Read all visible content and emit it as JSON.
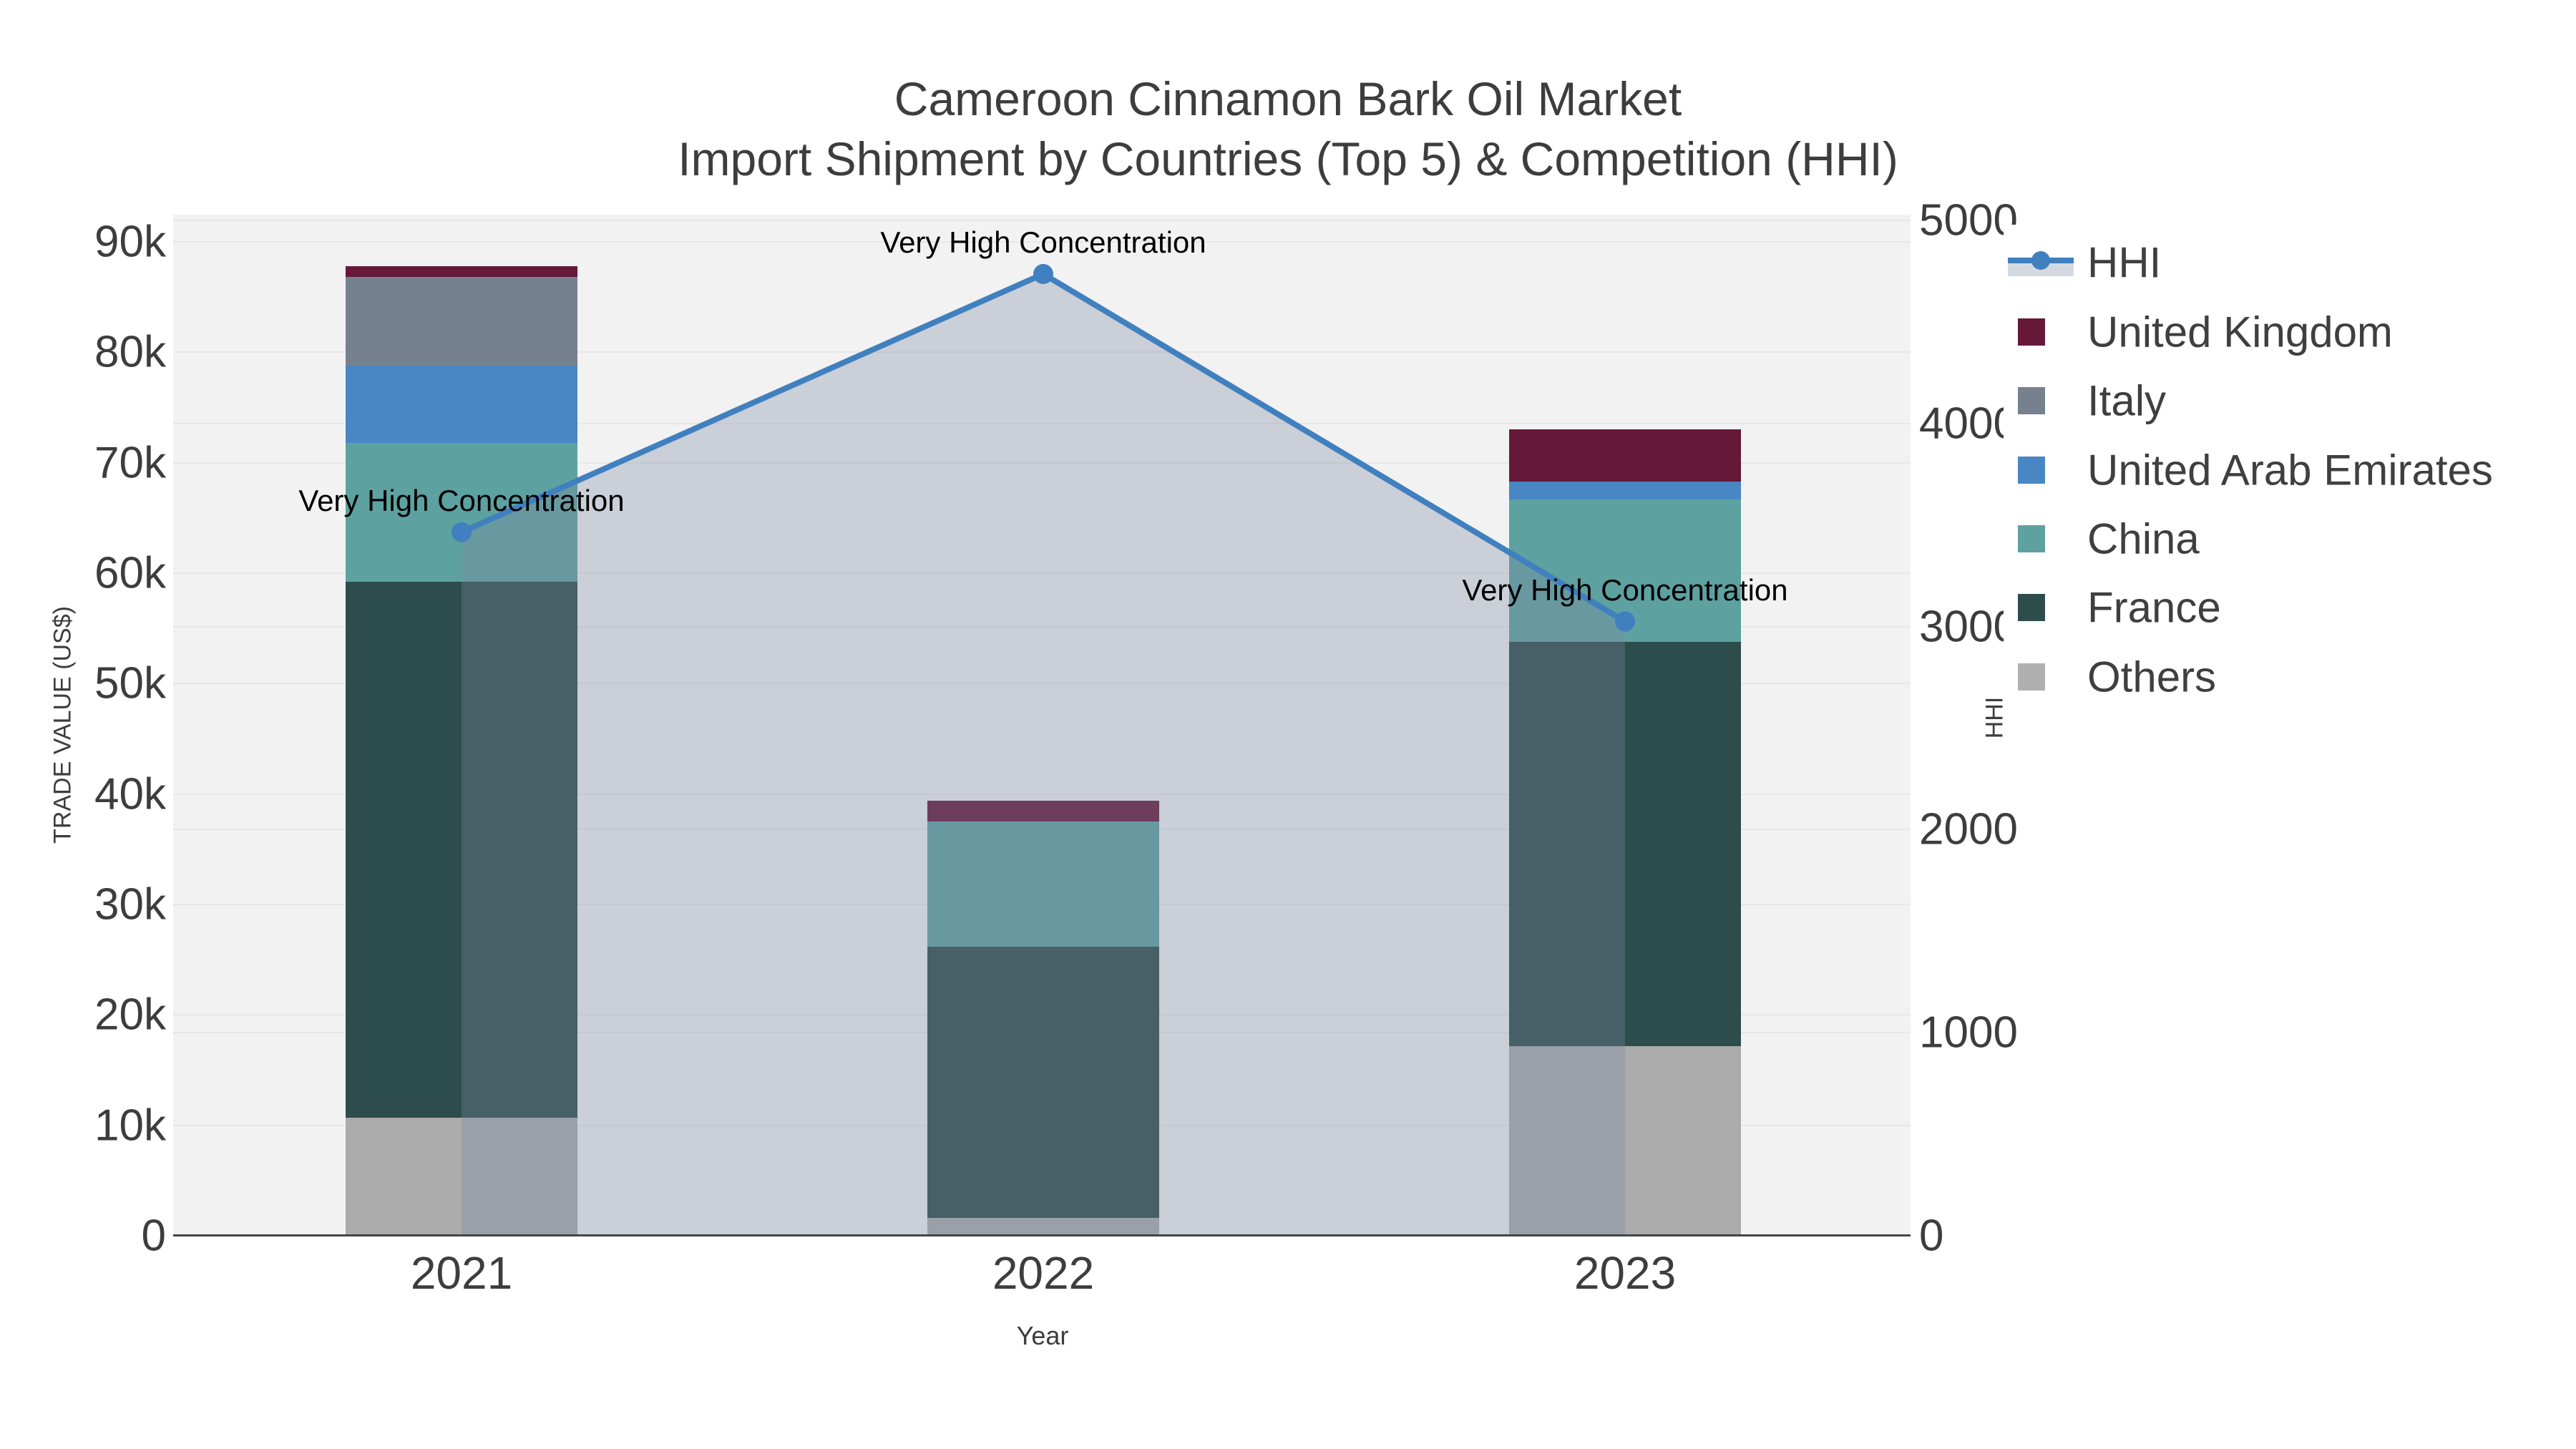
{
  "title": {
    "line1": "Cameroon Cinnamon Bark Oil Market",
    "line2": "Import Shipment by Countries (Top 5) & Competition (HHI)"
  },
  "axes": {
    "x": {
      "label": "Year",
      "categories": [
        "2021",
        "2022",
        "2023"
      ]
    },
    "y_left": {
      "label": "TRADE VALUE (US$)",
      "tick_labels": [
        "0",
        "10k",
        "20k",
        "30k",
        "40k",
        "50k",
        "60k",
        "70k",
        "80k",
        "90k"
      ],
      "max": 90000
    },
    "y_right": {
      "label": "HHI",
      "tick_labels": [
        "0",
        "1000",
        "2000",
        "3000",
        "4000",
        "5000"
      ],
      "max": 5000
    }
  },
  "legend": {
    "items": [
      {
        "label": "HHI",
        "type": "line",
        "color": "#4080bf"
      },
      {
        "label": "United Kingdom",
        "type": "square",
        "color": "#661839"
      },
      {
        "label": "Italy",
        "type": "square",
        "color": "#76818f"
      },
      {
        "label": "United Arab Emirates",
        "type": "square",
        "color": "#4886c4"
      },
      {
        "label": "China",
        "type": "square",
        "color": "#5ea1a1"
      },
      {
        "label": "France",
        "type": "square",
        "color": "#2d4c4c"
      },
      {
        "label": "Others",
        "type": "square",
        "color": "#b0b0b0"
      }
    ]
  },
  "chart_data": {
    "type": "combo-stacked-bar-line",
    "categories": [
      "2021",
      "2022",
      "2023"
    ],
    "bar_value_unit": "US$",
    "series": [
      {
        "name": "Others",
        "color": "#ababab",
        "values": [
          10700,
          1600,
          17200
        ]
      },
      {
        "name": "France",
        "color": "#2d4c4c",
        "values": [
          48500,
          24600,
          36600
        ]
      },
      {
        "name": "China",
        "color": "#5ea1a1",
        "values": [
          12600,
          11300,
          12900
        ]
      },
      {
        "name": "United Arab Emirates",
        "color": "#4886c4",
        "values": [
          7000,
          0,
          1600
        ]
      },
      {
        "name": "Italy",
        "color": "#76818f",
        "values": [
          8000,
          0,
          0
        ]
      },
      {
        "name": "United Kingdom",
        "color": "#661839",
        "values": [
          1000,
          1900,
          4700
        ]
      }
    ],
    "line_series": {
      "name": "HHI",
      "axis": "right",
      "color": "#4080bf",
      "area_fill": "rgba(125,138,160,0.33)",
      "values": [
        3465,
        4736,
        3025
      ]
    },
    "annotations": [
      {
        "category": "2021",
        "text": "Very High Concentration"
      },
      {
        "category": "2022",
        "text": "Very High Concentration"
      },
      {
        "category": "2023",
        "text": "Very High Concentration"
      }
    ],
    "ylim_left": [
      0,
      90000
    ],
    "ylim_right": [
      0,
      5000
    ],
    "grid": true,
    "legend_position": "right",
    "plot_background": "#f2f2f2",
    "gridline_color": "#e7e7e7"
  }
}
